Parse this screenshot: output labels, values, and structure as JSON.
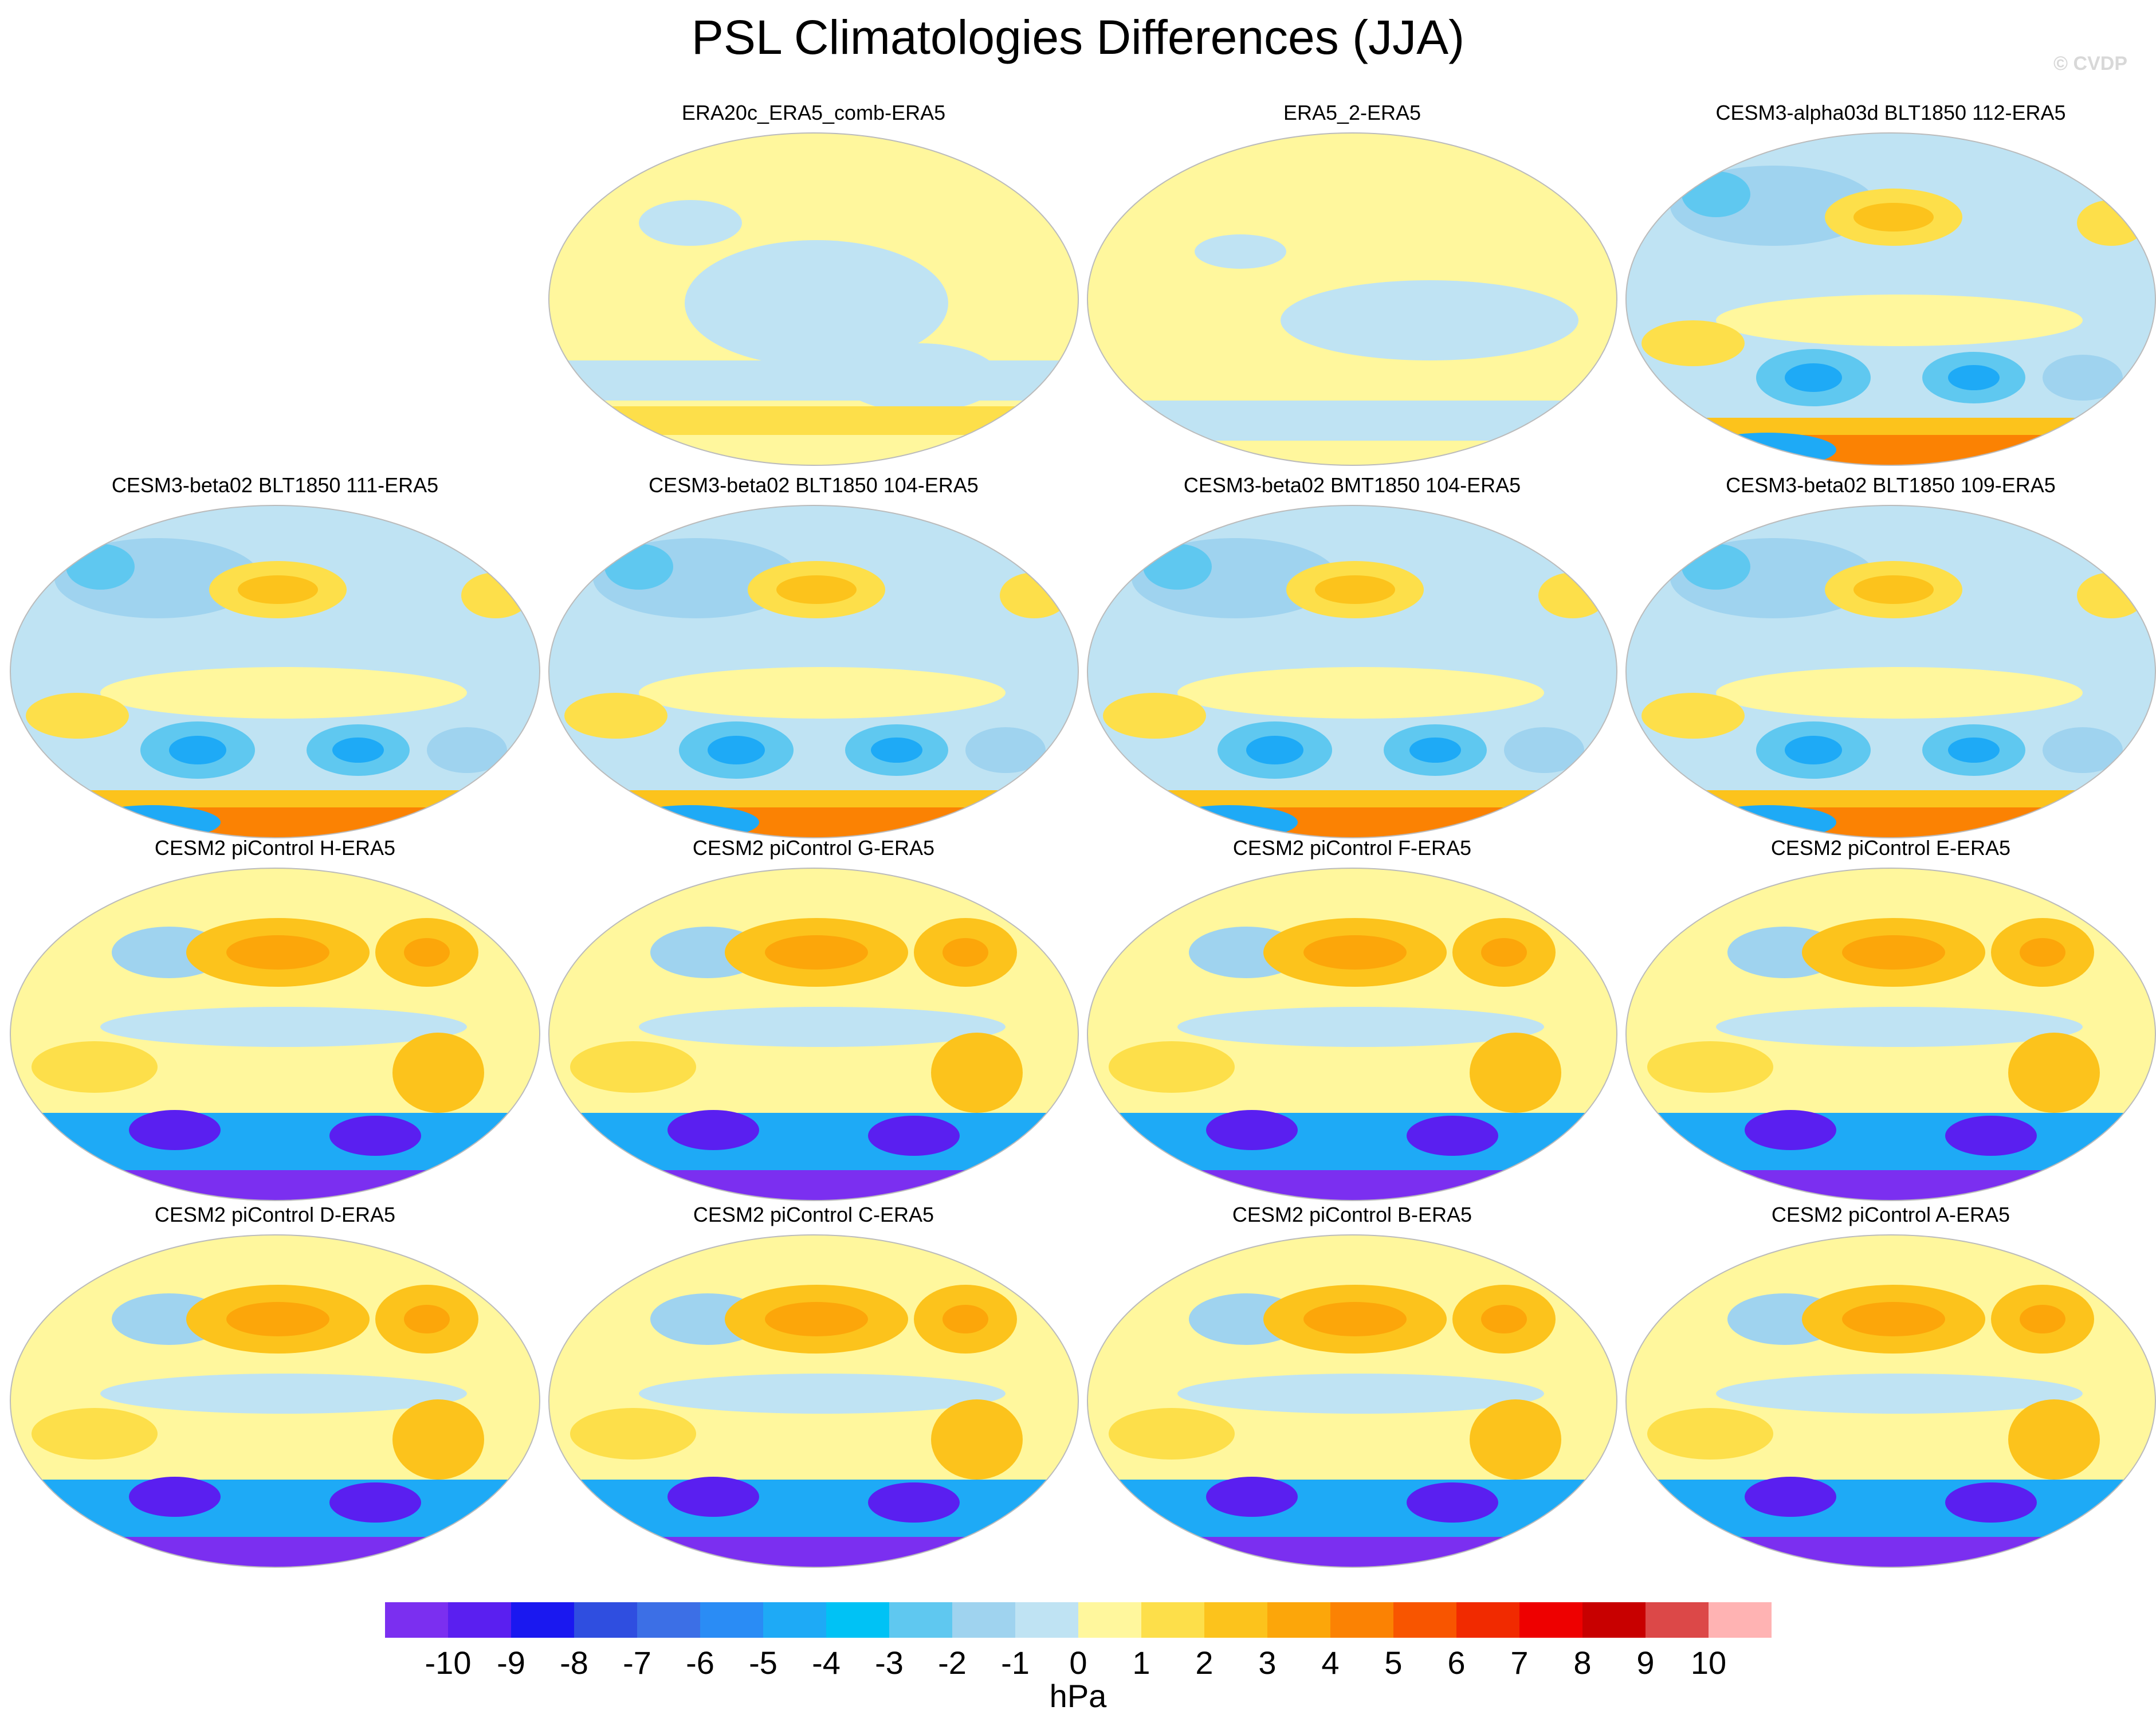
{
  "title": "PSL Climatologies Differences (JJA)",
  "watermark": "© CVDP",
  "colorbar": {
    "units": "hPa",
    "labels": [
      "-10",
      "-9",
      "-8",
      "-7",
      "-6",
      "-5",
      "-4",
      "-3",
      "-2",
      "-1",
      "0",
      "1",
      "2",
      "3",
      "4",
      "5",
      "6",
      "7",
      "8",
      "9",
      "10"
    ],
    "colors": [
      "#7b2ff0",
      "#5a1ff0",
      "#1a18f0",
      "#2f4ee0",
      "#3c6fe6",
      "#2a8cf5",
      "#1eaaf6",
      "#00c2f5",
      "#5fc8f0",
      "#9fd3ef",
      "#bfe3f3",
      "#fff79d",
      "#fddf4a",
      "#fcc31c",
      "#fca60a",
      "#fb8203",
      "#f85500",
      "#f12a00",
      "#ee0000",
      "#c80000",
      "#dc4848",
      "#ffb3b3"
    ]
  },
  "panels": [
    {
      "title": "ERA20c_ERA5_comb-ERA5",
      "pattern": "era20c"
    },
    {
      "title": "ERA5_2-ERA5",
      "pattern": "era5_2"
    },
    {
      "title": "CESM3-alpha03d BLT1850 112-ERA5",
      "pattern": "cesm3"
    },
    {
      "title": "CESM3-beta02 BLT1850 111-ERA5",
      "pattern": "cesm3"
    },
    {
      "title": "CESM3-beta02 BLT1850 104-ERA5",
      "pattern": "cesm3"
    },
    {
      "title": "CESM3-beta02 BMT1850 104-ERA5",
      "pattern": "cesm3"
    },
    {
      "title": "CESM3-beta02 BLT1850 109-ERA5",
      "pattern": "cesm3"
    },
    {
      "title": "CESM2 piControl H-ERA5",
      "pattern": "cesm2"
    },
    {
      "title": "CESM2 piControl G-ERA5",
      "pattern": "cesm2"
    },
    {
      "title": "CESM2 piControl F-ERA5",
      "pattern": "cesm2"
    },
    {
      "title": "CESM2 piControl E-ERA5",
      "pattern": "cesm2"
    },
    {
      "title": "CESM2 piControl D-ERA5",
      "pattern": "cesm2"
    },
    {
      "title": "CESM2 piControl C-ERA5",
      "pattern": "cesm2"
    },
    {
      "title": "CESM2 piControl B-ERA5",
      "pattern": "cesm2"
    },
    {
      "title": "CESM2 piControl A-ERA5",
      "pattern": "cesm2"
    }
  ]
}
